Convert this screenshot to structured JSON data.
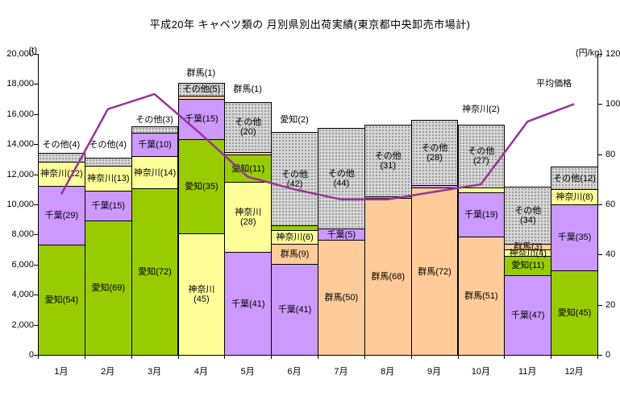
{
  "title": "平成20年 キャベツ類の 月別県別出荷実績(東京都中央卸売市場計)",
  "chart_data": {
    "type": "bar",
    "subtype": "stacked-bar-with-line",
    "title": "平成20年 キャベツ類の 月別県別出荷実績(東京都中央卸売市場計)",
    "categories": [
      "1月",
      "2月",
      "3月",
      "4月",
      "5月",
      "6月",
      "7月",
      "8月",
      "9月",
      "10月",
      "11月",
      "12月"
    ],
    "left_axis": {
      "unit": "(t)",
      "min": 0,
      "max": 20000,
      "step": 2000
    },
    "right_axis": {
      "unit": "(円/kg)",
      "min": 0,
      "max": 120,
      "step": 20
    },
    "grid": false,
    "legend": "none",
    "palette": {
      "愛知": "#99cc00",
      "千葉": "#cc99ff",
      "神奈川": "#ffff99",
      "群馬": "#ffcc99",
      "その他": "pattern-gray"
    },
    "bars": [
      {
        "month": "1月",
        "total_t": 13400,
        "segments": [
          {
            "pref": "愛知",
            "pct": 54,
            "label": "愛知(54)"
          },
          {
            "pref": "千葉",
            "pct": 29,
            "label": "千葉(29)"
          },
          {
            "pref": "神奈川",
            "pct": 12,
            "label": "神奈川(12)"
          },
          {
            "pref": "その他",
            "pct": 4,
            "label": "その他(4)",
            "above": true,
            "gap": 3
          }
        ]
      },
      {
        "month": "2月",
        "total_t": 13100,
        "segments": [
          {
            "pref": "愛知",
            "pct": 69,
            "label": "愛知(69)"
          },
          {
            "pref": "千葉",
            "pct": 15,
            "label": "千葉(15)"
          },
          {
            "pref": "神奈川",
            "pct": 13,
            "label": "神奈川(13)"
          },
          {
            "pref": "その他",
            "pct": 4,
            "label": "その他(4)",
            "above": true,
            "gap": 9
          }
        ]
      },
      {
        "month": "3月",
        "total_t": 15200,
        "segments": [
          {
            "pref": "愛知",
            "pct": 72,
            "label": "愛知(72)"
          },
          {
            "pref": "神奈川",
            "pct": 14,
            "label": "神奈川(14)"
          },
          {
            "pref": "千葉",
            "pct": 10,
            "label": "千葉(10)"
          },
          {
            "pref": "その他",
            "pct": 3,
            "label": "その他(3)",
            "above": true,
            "gap": 1
          }
        ]
      },
      {
        "month": "4月",
        "total_t": 18100,
        "segments": [
          {
            "pref": "神奈川",
            "pct": 45,
            "label": "神奈川\n(45)"
          },
          {
            "pref": "愛知",
            "pct": 35,
            "label": "愛知(35)"
          },
          {
            "pref": "千葉",
            "pct": 15,
            "label": "千葉(15)"
          },
          {
            "pref": "群馬",
            "pct": 1,
            "label": "群馬(1)",
            "above": true,
            "gap": 5
          },
          {
            "pref": "その他",
            "pct": 5,
            "label": "その他(5)"
          }
        ]
      },
      {
        "month": "5月",
        "total_t": 16800,
        "segments": [
          {
            "pref": "千葉",
            "pct": 41,
            "label": "千葉(41)"
          },
          {
            "pref": "神奈川",
            "pct": 28,
            "label": "神奈川\n(28)"
          },
          {
            "pref": "愛知",
            "pct": 11,
            "label": "愛知(11)"
          },
          {
            "pref": "群馬",
            "pct": 1,
            "label": "群馬(1)",
            "above": true,
            "gap": 9
          },
          {
            "pref": "その他",
            "pct": 20,
            "label": "その他\n(20)"
          }
        ]
      },
      {
        "month": "6月",
        "total_t": 14800,
        "segments": [
          {
            "pref": "千葉",
            "pct": 41,
            "label": "千葉(41)"
          },
          {
            "pref": "群馬",
            "pct": 9,
            "label": "群馬(9)"
          },
          {
            "pref": "神奈川",
            "pct": 6,
            "label": "神奈川(6)"
          },
          {
            "pref": "愛知",
            "pct": 2,
            "label": "愛知(2)",
            "above": true,
            "gap": 8
          },
          {
            "pref": "その他",
            "pct": 42,
            "label": "その他\n(42)"
          }
        ]
      },
      {
        "month": "7月",
        "total_t": 15100,
        "segments": [
          {
            "pref": "群馬",
            "pct": 50,
            "label": "群馬(50)"
          },
          {
            "pref": "千葉",
            "pct": 5,
            "label": "千葉(5)"
          },
          {
            "pref": "その他",
            "pct": 44,
            "label": "その他\n(44)"
          }
        ]
      },
      {
        "month": "8月",
        "total_t": 15300,
        "segments": [
          {
            "pref": "群馬",
            "pct": 68,
            "label": "群馬(68)"
          },
          {
            "pref": "千葉",
            "pct": 1,
            "label": ""
          },
          {
            "pref": "その他",
            "pct": 31,
            "label": "その他\n(31)"
          }
        ]
      },
      {
        "month": "9月",
        "total_t": 15600,
        "segments": [
          {
            "pref": "群馬",
            "pct": 72,
            "label": "群馬(72)"
          },
          {
            "pref": "千葉",
            "pct": 1,
            "label": ""
          },
          {
            "pref": "その他",
            "pct": 28,
            "label": "その他\n(28)"
          }
        ]
      },
      {
        "month": "10月",
        "total_t": 15300,
        "segments": [
          {
            "pref": "群馬",
            "pct": 51,
            "label": "群馬(51)"
          },
          {
            "pref": "千葉",
            "pct": 19,
            "label": "千葉(19)"
          },
          {
            "pref": "神奈川",
            "pct": 2,
            "label": "神奈川(2)",
            "above": true,
            "gap": 12
          },
          {
            "pref": "その他",
            "pct": 27,
            "label": "その他\n(27)"
          }
        ]
      },
      {
        "month": "11月",
        "total_t": 11200,
        "segments": [
          {
            "pref": "千葉",
            "pct": 47,
            "label": "千葉(47)"
          },
          {
            "pref": "愛知",
            "pct": 11,
            "label": "愛知(11)"
          },
          {
            "pref": "神奈川",
            "pct": 4,
            "label": "神奈川(4)"
          },
          {
            "pref": "群馬",
            "pct": 3,
            "label": "群馬(3)"
          },
          {
            "pref": "その他",
            "pct": 34,
            "label": "その他\n(34)"
          }
        ]
      },
      {
        "month": "12月",
        "total_t": 12500,
        "segments": [
          {
            "pref": "愛知",
            "pct": 45,
            "label": "愛知(45)"
          },
          {
            "pref": "千葉",
            "pct": 35,
            "label": "千葉(35)"
          },
          {
            "pref": "神奈川",
            "pct": 8,
            "label": "神奈川(8)"
          },
          {
            "pref": "その他",
            "pct": 12,
            "label": "その他(12)"
          }
        ]
      }
    ],
    "series": [
      {
        "name": "平均価格",
        "type": "line",
        "axis": "right",
        "color": "#993399",
        "values": [
          64,
          98,
          104,
          88,
          71,
          66,
          62,
          62,
          65,
          68,
          93,
          100
        ]
      }
    ],
    "series_label": {
      "text": "平均価格",
      "dx": -25,
      "dy": -21
    }
  }
}
